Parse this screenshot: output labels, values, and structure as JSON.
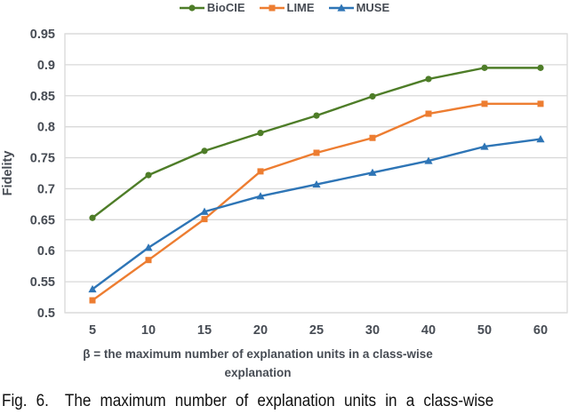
{
  "chart_data": {
    "type": "line",
    "categories": [
      "5",
      "10",
      "15",
      "20",
      "25",
      "30",
      "40",
      "50",
      "60"
    ],
    "series": [
      {
        "name": "BioCIE",
        "color": "#4e7d28",
        "marker": "circle",
        "values": [
          0.653,
          0.722,
          0.761,
          0.79,
          0.818,
          0.849,
          0.877,
          0.895,
          0.895
        ]
      },
      {
        "name": "LIME",
        "color": "#ed7d31",
        "marker": "square",
        "values": [
          0.52,
          0.585,
          0.651,
          0.728,
          0.758,
          0.782,
          0.821,
          0.837,
          0.837
        ]
      },
      {
        "name": "MUSE",
        "color": "#2e75b6",
        "marker": "triangle",
        "values": [
          0.538,
          0.605,
          0.663,
          0.688,
          0.707,
          0.726,
          0.745,
          0.768,
          0.78
        ]
      }
    ],
    "title": "",
    "xlabel_line1": "β = the maximum number of explanation units in a class-wise",
    "xlabel_line2": "explanation",
    "ylabel": "Fidelity",
    "ylim": [
      0.5,
      0.95
    ],
    "ytick_step": 0.05,
    "ytick_labels": [
      "0.5",
      "0.55",
      "0.6",
      "0.65",
      "0.7",
      "0.75",
      "0.8",
      "0.85",
      "0.9",
      "0.95"
    ],
    "grid": true,
    "legend_position": "top"
  },
  "caption": {
    "prefix": "Fig. 6.",
    "text": "The maximum number of explanation units in a class-wise"
  },
  "colors": {
    "grid": "#d9d9d9",
    "axis_text": "#474c54",
    "caption_text": "#111111",
    "background": "#ffffff"
  }
}
